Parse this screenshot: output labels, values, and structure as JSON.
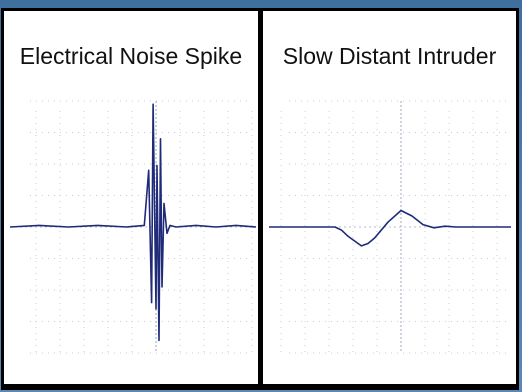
{
  "chart_data": [
    {
      "type": "line",
      "title": "Electrical Noise Spike",
      "xlabel": "",
      "ylabel": "",
      "xlim": [
        -10,
        10
      ],
      "ylim": [
        -8,
        8
      ],
      "grid": true,
      "series": [
        {
          "color": "#1f2a78",
          "x": [
            -10,
            -8,
            -6,
            -4,
            -2,
            -0.8,
            -0.5,
            -0.3,
            -0.2,
            0,
            0.1,
            0.3,
            0.45,
            0.6,
            0.8,
            1.1,
            1.4,
            2,
            4,
            6,
            8,
            10
          ],
          "y": [
            0,
            0.1,
            0,
            0.1,
            0,
            0.1,
            3.6,
            -4.8,
            7.8,
            -5.2,
            3.9,
            -7.2,
            5.6,
            -3.8,
            1.5,
            -0.4,
            0.1,
            0,
            0.1,
            0,
            0.1,
            0
          ]
        }
      ]
    },
    {
      "type": "line",
      "title": "Slow Distant Intruder",
      "xlabel": "",
      "ylabel": "",
      "xlim": [
        -10,
        10
      ],
      "ylim": [
        -8,
        8
      ],
      "grid": true,
      "series": [
        {
          "color": "#1f2a78",
          "x": [
            -10,
            -8,
            -6,
            -5,
            -4.5,
            -4,
            -3,
            -2.5,
            -2,
            -1.5,
            -1,
            0,
            1,
            2,
            3,
            4,
            5,
            6,
            8,
            10
          ],
          "y": [
            0,
            0,
            0,
            0,
            -0.2,
            -0.6,
            -1.2,
            -1.05,
            -0.7,
            -0.2,
            0.3,
            1.05,
            0.7,
            0.15,
            -0.05,
            0.05,
            0,
            0,
            0,
            0
          ]
        }
      ]
    }
  ]
}
